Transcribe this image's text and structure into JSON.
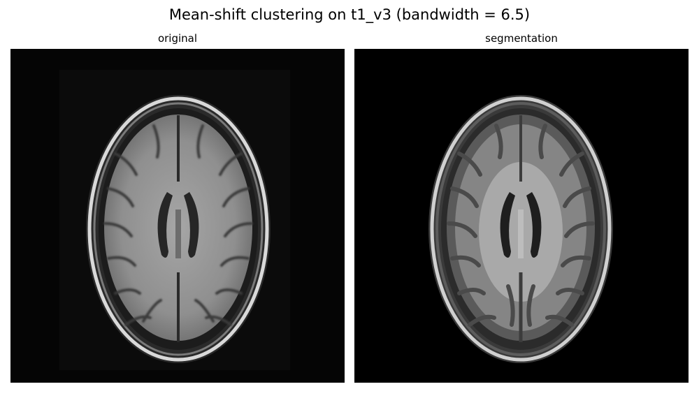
{
  "figure": {
    "title": "Mean-shift clustering on t1_v3 (bandwidth = 6.5)"
  },
  "panels": [
    {
      "title": "original"
    },
    {
      "title": "segmentation"
    }
  ]
}
